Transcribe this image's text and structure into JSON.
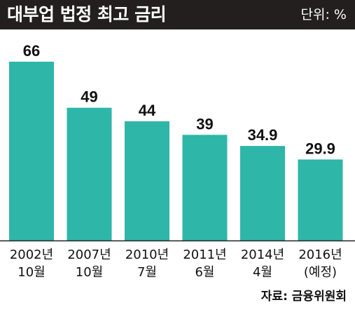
{
  "header": {
    "title": "대부업 법정 최고 금리",
    "unit": "단위: %"
  },
  "source": "자료: 금융위원회",
  "colors": {
    "bar": "#2eb6a9",
    "title_bg": "#231f1f",
    "axis": "#222222"
  },
  "chart_data": {
    "type": "bar",
    "title": "대부업 법정 최고 금리",
    "xlabel": "",
    "ylabel": "",
    "unit": "%",
    "categories": [
      [
        "2002년",
        "10월"
      ],
      [
        "2007년",
        "10월"
      ],
      [
        "2010년",
        "7월"
      ],
      [
        "2011년",
        "6월"
      ],
      [
        "2014년",
        "4월"
      ],
      [
        "2016년",
        "(예정)"
      ]
    ],
    "values": [
      66,
      49,
      44,
      39,
      34.9,
      29.9
    ],
    "value_labels": [
      "66",
      "49",
      "44",
      "39",
      "34.9",
      "29.9"
    ],
    "ylim": [
      0,
      66
    ],
    "grid": false,
    "legend": "none"
  }
}
